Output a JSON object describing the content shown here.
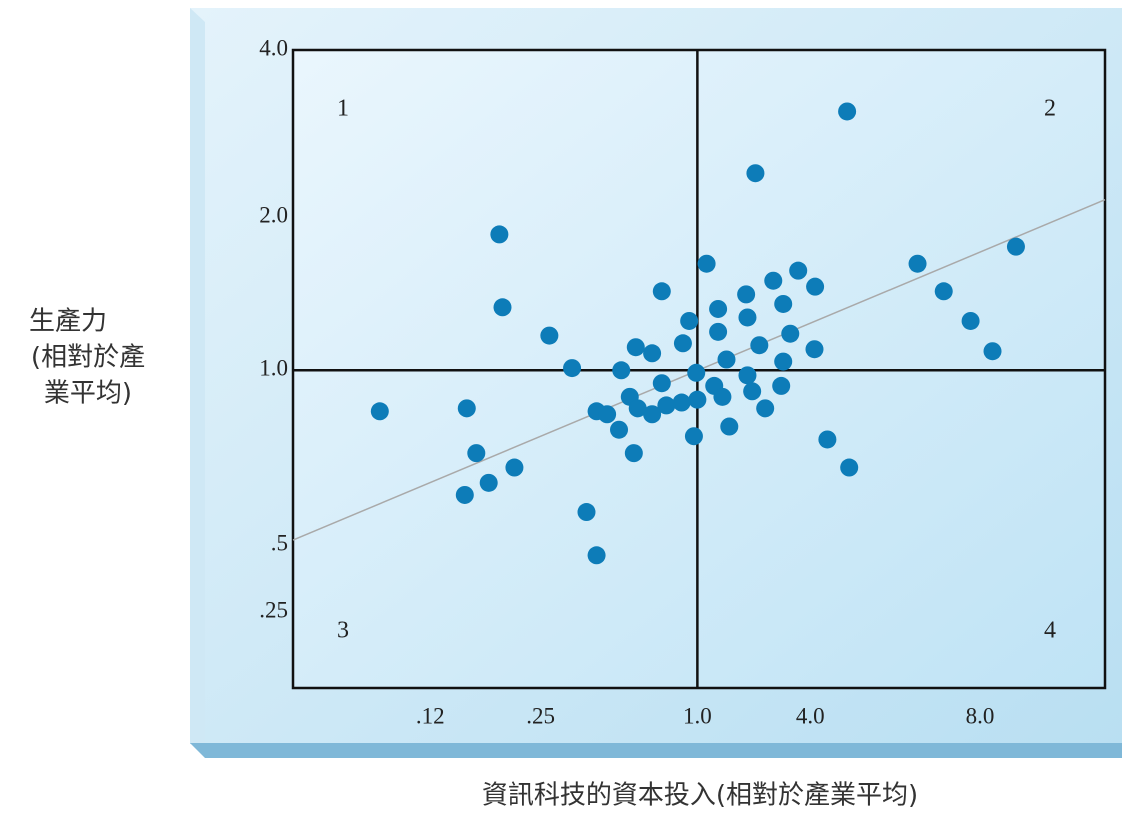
{
  "chart_data": {
    "type": "scatter",
    "xlabel": "資訊科技的資本投入(相對於產業平均)",
    "ylabel": [
      "生產力",
      "(相對於產",
      "業平均)"
    ],
    "xlim": [
      0.05,
      13
    ],
    "xticks": [
      {
        "value": 0.12,
        "label": ".12"
      },
      {
        "value": 0.25,
        "label": ".25"
      },
      {
        "value": 1,
        "label": "1.0"
      },
      {
        "value": 4,
        "label": "4.0"
      },
      {
        "value": 8,
        "label": "8.0"
      }
    ],
    "ylim": [
      0.11,
      4
    ],
    "yticks": [
      {
        "value": 0.25,
        "label": ".25"
      },
      {
        "value": 0.5,
        "label": ".5"
      },
      {
        "value": 1,
        "label": "1.0"
      },
      {
        "value": 2,
        "label": "2.0"
      },
      {
        "value": 4,
        "label": "4.0"
      }
    ],
    "quadrant_labels": [
      "1",
      "2",
      "3",
      "4"
    ],
    "series": [
      {
        "color": "#0d7cb8",
        "x": [
          4.65,
          2.04,
          0.19,
          9.2,
          6.2,
          1.12,
          6.9,
          0.73,
          0.194,
          3.45,
          2.54,
          4.08,
          1.82,
          2.87,
          1.29,
          7.7,
          1.85,
          0.93,
          1.29,
          3.13,
          0.27,
          0.88,
          0.58,
          0.67,
          2.14,
          4.07,
          8.4,
          1.43,
          2.87,
          0.33,
          0.51,
          0.99,
          1.85,
          0.73,
          1.23,
          2.8,
          1.96,
          0.55,
          1.36,
          1.0,
          0.87,
          0.76,
          0.59,
          0.67,
          0.41,
          0.45,
          2.3,
          0.087,
          0.153,
          0.5,
          1.48,
          0.97,
          4.29,
          0.163,
          0.57,
          0.21,
          4.69,
          0.177,
          0.151,
          0.375,
          0.41
        ],
        "y": [
          3.1,
          2.4,
          1.85,
          1.75,
          1.62,
          1.62,
          1.43,
          1.43,
          1.33,
          1.57,
          1.5,
          1.46,
          1.41,
          1.35,
          1.32,
          1.25,
          1.27,
          1.25,
          1.19,
          1.18,
          1.17,
          1.13,
          1.11,
          1.08,
          1.12,
          1.1,
          1.09,
          1.05,
          1.04,
          1.01,
          1.0,
          0.99,
          0.98,
          0.95,
          0.94,
          0.94,
          0.92,
          0.9,
          0.9,
          0.89,
          0.88,
          0.87,
          0.86,
          0.84,
          0.85,
          0.84,
          0.86,
          0.85,
          0.86,
          0.79,
          0.8,
          0.77,
          0.76,
          0.72,
          0.72,
          0.68,
          0.68,
          0.64,
          0.61,
          0.57,
          0.45
        ]
      }
    ],
    "trend": {
      "color": "#a9a9a9",
      "x": [
        0.05,
        13
      ],
      "y": [
        0.51,
        2.15
      ]
    }
  }
}
